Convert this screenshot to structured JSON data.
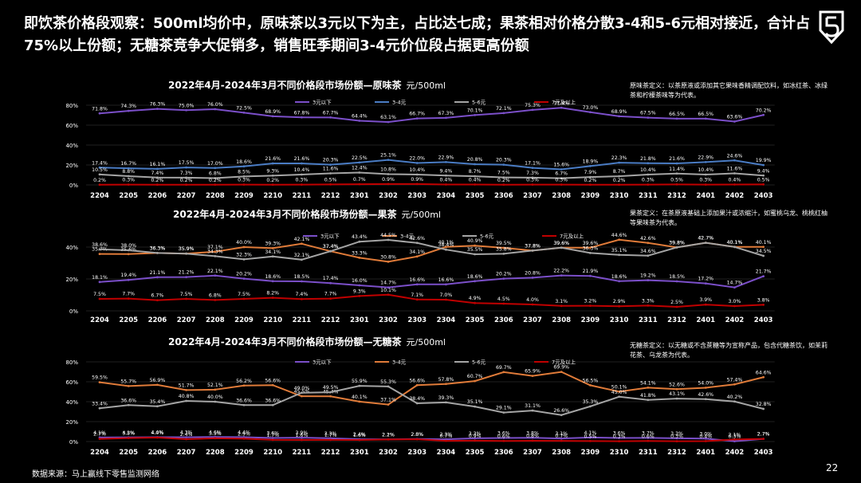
{
  "headline": "即饮茶价格段观察：500ml均价中，原味茶以3元以下为主，占比达七成；果茶相对价格分散3-4和5-6元相对接近，合计占75%以上份额；无糖茶竞争大促销多，销售旺季期间3-4元价位段占据更高份额",
  "footer": "数据来源：马上赢线下零售监测网络",
  "page_number": "22",
  "colors": {
    "s1": "#7b4fc9",
    "s2_orig": "#4a7cc4",
    "s2": "#e07b39",
    "s3": "#a5a5a5",
    "s4": "#c00000",
    "grid": "#404040",
    "text": "#ffffff"
  },
  "chart_data": [
    {
      "type": "line",
      "title": "2022年4月-2024年3月不同价格段市场份额—原味茶",
      "unit": "元/500ml",
      "definition": "原味茶定义：以茶原液或添加其它果味香精调配饮料，如冰红茶、冰绿茶和柠檬茶味等为代表。",
      "categories": [
        "2204",
        "2205",
        "2206",
        "2207",
        "2208",
        "2209",
        "2210",
        "2211",
        "2212",
        "2301",
        "2302",
        "2303",
        "2304",
        "2305",
        "2306",
        "2307",
        "2308",
        "2309",
        "2310",
        "2311",
        "2312",
        "2401",
        "2402",
        "2403"
      ],
      "yticks": [
        "0%",
        "20%",
        "40%",
        "60%",
        "80%"
      ],
      "ylim": [
        0,
        80
      ],
      "series": [
        {
          "name": "3元以下",
          "color": "#7b4fc9",
          "values": [
            71.8,
            74.3,
            76.3,
            75.0,
            76.0,
            72.5,
            68.9,
            67.8,
            67.7,
            64.4,
            63.1,
            66.7,
            67.3,
            70.1,
            72.1,
            75.3,
            77.4,
            73.0,
            68.9,
            67.5,
            66.5,
            66.5,
            63.6,
            70.2
          ]
        },
        {
          "name": "3-4元",
          "color": "#4a7cc4",
          "values": [
            17.4,
            16.7,
            16.1,
            17.5,
            17.0,
            18.6,
            21.6,
            21.6,
            20.3,
            22.5,
            25.1,
            22.0,
            22.9,
            20.8,
            20.3,
            17.1,
            15.6,
            18.9,
            22.3,
            21.8,
            21.6,
            22.9,
            24.6,
            19.9
          ]
        },
        {
          "name": "5-6元",
          "color": "#a5a5a5",
          "values": [
            10.5,
            8.8,
            7.4,
            7.3,
            6.8,
            8.5,
            9.3,
            10.4,
            11.6,
            12.4,
            10.8,
            10.4,
            9.4,
            8.7,
            7.5,
            7.3,
            6.7,
            7.9,
            8.7,
            10.4,
            11.4,
            10.4,
            11.6,
            9.4
          ]
        },
        {
          "name": "7元及以上",
          "color": "#c00000",
          "values": [
            0.2,
            0.3,
            0.2,
            0.2,
            0.2,
            0.3,
            0.2,
            0.3,
            0.5,
            0.7,
            0.9,
            0.9,
            0.4,
            0.4,
            0.2,
            0.3,
            0.3,
            0.2,
            0.2,
            0.3,
            0.5,
            0.3,
            0.4,
            0.5
          ]
        }
      ]
    },
    {
      "type": "line",
      "title": "2022年4月-2024年3月不同价格段市场份额—果茶",
      "unit": "元/500ml",
      "definition": "果茶定义：在茶原液基础上添加果汁或浓缩汁，如蜜桃乌龙、桃桃红柚等果味茶为代表。",
      "categories": [
        "2204",
        "2205",
        "2206",
        "2207",
        "2208",
        "2209",
        "2210",
        "2211",
        "2212",
        "2301",
        "2302",
        "2303",
        "2304",
        "2305",
        "2306",
        "2307",
        "2308",
        "2309",
        "2310",
        "2311",
        "2312",
        "2401",
        "2402",
        "2403"
      ],
      "yticks": [
        "0%",
        "20%",
        "40%"
      ],
      "ylim": [
        0,
        50
      ],
      "series": [
        {
          "name": "3元以下",
          "color": "#7b4fc9",
          "values": [
            18.1,
            19.4,
            21.1,
            21.2,
            22.1,
            20.2,
            18.6,
            18.5,
            17.4,
            16.0,
            14.7,
            16.6,
            16.6,
            18.6,
            20.2,
            20.8,
            22.2,
            21.9,
            18.6,
            19.2,
            18.5,
            17.2,
            14.7,
            21.7
          ]
        },
        {
          "name": "3-4元",
          "color": "#e07b39",
          "values": [
            35.7,
            35.6,
            36.3,
            35.9,
            37.1,
            40.0,
            39.3,
            42.1,
            37.4,
            33.3,
            30.8,
            34.1,
            40.1,
            40.9,
            39.5,
            37.8,
            39.6,
            39.6,
            44.6,
            42.6,
            39.8,
            42.7,
            40.1,
            40.1
          ]
        },
        {
          "name": "5-6元",
          "color": "#a5a5a5",
          "values": [
            38.6,
            38.0,
            36.3,
            35.9,
            34.3,
            32.3,
            34.1,
            32.1,
            37.4,
            43.4,
            44.5,
            42.6,
            38.4,
            35.5,
            35.8,
            37.8,
            39.6,
            36.3,
            35.1,
            34.6,
            39.8,
            42.7,
            40.1,
            34.5
          ]
        },
        {
          "name": "7元及以上",
          "color": "#c00000",
          "values": [
            7.5,
            7.7,
            6.7,
            7.5,
            6.8,
            7.5,
            8.2,
            7.4,
            7.7,
            9.3,
            10.1,
            7.1,
            7.0,
            4.9,
            4.5,
            4.0,
            3.1,
            3.2,
            2.9,
            3.3,
            2.5,
            3.9,
            3.0,
            3.8
          ]
        }
      ]
    },
    {
      "type": "line",
      "title": "2022年4月-2024年3月不同价格段市场份额—无糖茶",
      "unit": "元/500ml",
      "definition": "无糖茶定义：以无糖或不含蔗糖等为宣称产品，包含代糖茶饮，如茉莉花茶、乌龙茶为代表。",
      "categories": [
        "2204",
        "2205",
        "2206",
        "2207",
        "2208",
        "2209",
        "2210",
        "2211",
        "2212",
        "2301",
        "2302",
        "2303",
        "2304",
        "2305",
        "2306",
        "2307",
        "2308",
        "2309",
        "2310",
        "2311",
        "2312",
        "2401",
        "2402",
        "2403"
      ],
      "yticks": [
        "0%",
        "20%",
        "40%",
        "60%",
        "80%"
      ],
      "ylim": [
        0,
        80
      ],
      "series": [
        {
          "name": "3元以下",
          "color": "#7b4fc9",
          "values": [
            4.1,
            4.2,
            4.4,
            4.3,
            4.6,
            4.4,
            3.6,
            3.9,
            3.3,
            2.4,
            2.2,
            2.6,
            2.3,
            3.3,
            3.6,
            3.8,
            3.1,
            4.1,
            3.6,
            3.7,
            3.3,
            3.0,
            0.3,
            2.7
          ]
        },
        {
          "name": "3-4元",
          "color": "#e07b39",
          "values": [
            59.5,
            55.7,
            56.9,
            51.7,
            52.1,
            56.2,
            56.6,
            45.5,
            45.4,
            40.1,
            37.1,
            56.6,
            57.8,
            60.7,
            69.7,
            65.9,
            69.9,
            56.5,
            50.1,
            54.1,
            52.6,
            54.0,
            57.4,
            64.6
          ]
        },
        {
          "name": "5-6元",
          "color": "#a5a5a5",
          "values": [
            33.4,
            36.6,
            35.4,
            40.8,
            40.0,
            36.6,
            36.6,
            49.0,
            49.5,
            55.9,
            55.3,
            38.4,
            39.3,
            35.1,
            29.1,
            31.1,
            26.6,
            35.3,
            45.0,
            41.8,
            43.1,
            42.6,
            40.2,
            32.8
          ]
        },
        {
          "name": "7元及以上",
          "color": "#c00000",
          "values": [
            2.7,
            3.5,
            4.0,
            2.4,
            3.3,
            2.9,
            1.7,
            1.6,
            1.7,
            1.6,
            2.1,
            2.3,
            0.7,
            0.9,
            0.6,
            0.8,
            0.7,
            0.5,
            0.3,
            0.6,
            0.3,
            0.4,
            2.1,
            2.7
          ]
        }
      ]
    }
  ]
}
